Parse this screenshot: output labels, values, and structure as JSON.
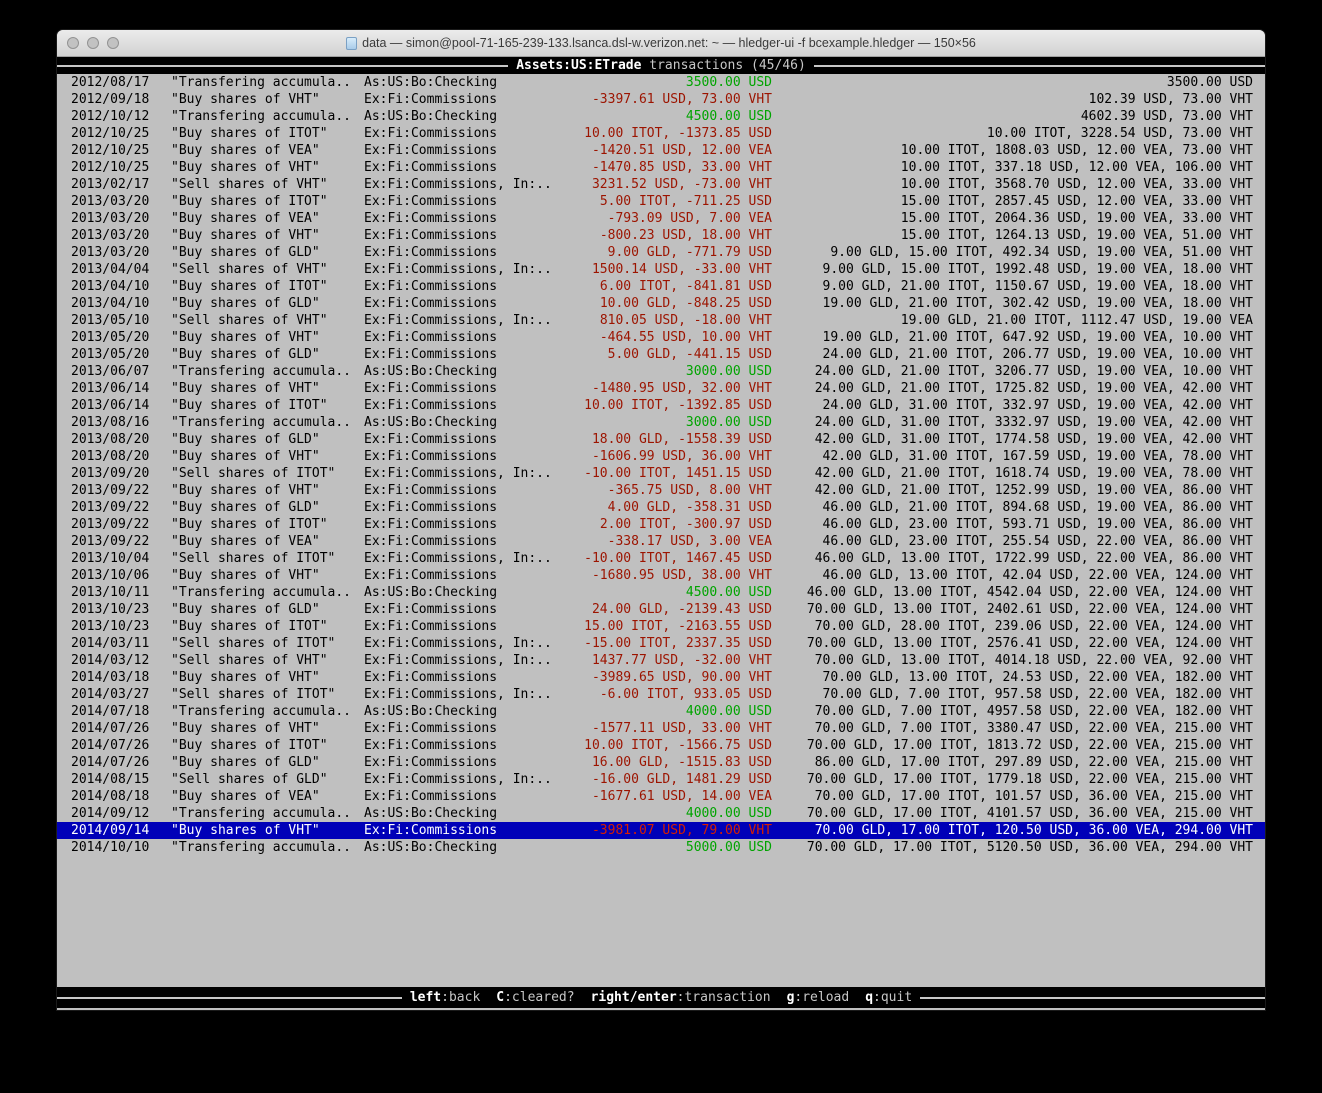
{
  "window": {
    "title": "data — simon@pool-71-165-239-133.lsanca.dsl-w.verizon.net: ~ — hledger-ui -f bcexample.hledger — 150×56"
  },
  "header": {
    "account": "Assets:US:ETrade",
    "label": "transactions (45/46)"
  },
  "footer": {
    "hints": [
      {
        "key": "left",
        "label": ":back"
      },
      {
        "key": "C",
        "label": ":cleared?"
      },
      {
        "key": "right/enter",
        "label": ":transaction"
      },
      {
        "key": "g",
        "label": ":reload"
      },
      {
        "key": "q",
        "label": ":quit"
      }
    ]
  },
  "colors": {
    "terminal_bg": "#c0c0c0",
    "band_bg": "#000000",
    "amount_green": "#00a400",
    "amount_red": "#9c1400",
    "selection_bg": "#0000b8",
    "selection_red": "#d61e00"
  },
  "selected_index": 44,
  "transactions": [
    {
      "date": "2012/08/17",
      "description": "\"Transfering accumula..",
      "account": "As:US:Bo:Checking",
      "amount": "3500.00 USD",
      "amount_color": "green",
      "balance": "3500.00 USD"
    },
    {
      "date": "2012/09/18",
      "description": "\"Buy shares of VHT\"",
      "account": "Ex:Fi:Commissions",
      "amount": "-3397.61 USD, 73.00 VHT",
      "amount_color": "red",
      "balance": "102.39 USD, 73.00 VHT"
    },
    {
      "date": "2012/10/12",
      "description": "\"Transfering accumula..",
      "account": "As:US:Bo:Checking",
      "amount": "4500.00 USD",
      "amount_color": "green",
      "balance": "4602.39 USD, 73.00 VHT"
    },
    {
      "date": "2012/10/25",
      "description": "\"Buy shares of ITOT\"",
      "account": "Ex:Fi:Commissions",
      "amount": "10.00 ITOT, -1373.85 USD",
      "amount_color": "red",
      "balance": "10.00 ITOT, 3228.54 USD, 73.00 VHT"
    },
    {
      "date": "2012/10/25",
      "description": "\"Buy shares of VEA\"",
      "account": "Ex:Fi:Commissions",
      "amount": "-1420.51 USD, 12.00 VEA",
      "amount_color": "red",
      "balance": "10.00 ITOT, 1808.03 USD, 12.00 VEA, 73.00 VHT"
    },
    {
      "date": "2012/10/25",
      "description": "\"Buy shares of VHT\"",
      "account": "Ex:Fi:Commissions",
      "amount": "-1470.85 USD, 33.00 VHT",
      "amount_color": "red",
      "balance": "10.00 ITOT, 337.18 USD, 12.00 VEA, 106.00 VHT"
    },
    {
      "date": "2013/02/17",
      "description": "\"Sell shares of VHT\"",
      "account": "Ex:Fi:Commissions, In:..",
      "amount": "3231.52 USD, -73.00 VHT",
      "amount_color": "red",
      "balance": "10.00 ITOT, 3568.70 USD, 12.00 VEA, 33.00 VHT"
    },
    {
      "date": "2013/03/20",
      "description": "\"Buy shares of ITOT\"",
      "account": "Ex:Fi:Commissions",
      "amount": "5.00 ITOT, -711.25 USD",
      "amount_color": "red",
      "balance": "15.00 ITOT, 2857.45 USD, 12.00 VEA, 33.00 VHT"
    },
    {
      "date": "2013/03/20",
      "description": "\"Buy shares of VEA\"",
      "account": "Ex:Fi:Commissions",
      "amount": "-793.09 USD, 7.00 VEA",
      "amount_color": "red",
      "balance": "15.00 ITOT, 2064.36 USD, 19.00 VEA, 33.00 VHT"
    },
    {
      "date": "2013/03/20",
      "description": "\"Buy shares of VHT\"",
      "account": "Ex:Fi:Commissions",
      "amount": "-800.23 USD, 18.00 VHT",
      "amount_color": "red",
      "balance": "15.00 ITOT, 1264.13 USD, 19.00 VEA, 51.00 VHT"
    },
    {
      "date": "2013/03/20",
      "description": "\"Buy shares of GLD\"",
      "account": "Ex:Fi:Commissions",
      "amount": "9.00 GLD, -771.79 USD",
      "amount_color": "red",
      "balance": "9.00 GLD, 15.00 ITOT, 492.34 USD, 19.00 VEA, 51.00 VHT"
    },
    {
      "date": "2013/04/04",
      "description": "\"Sell shares of VHT\"",
      "account": "Ex:Fi:Commissions, In:..",
      "amount": "1500.14 USD, -33.00 VHT",
      "amount_color": "red",
      "balance": "9.00 GLD, 15.00 ITOT, 1992.48 USD, 19.00 VEA, 18.00 VHT"
    },
    {
      "date": "2013/04/10",
      "description": "\"Buy shares of ITOT\"",
      "account": "Ex:Fi:Commissions",
      "amount": "6.00 ITOT, -841.81 USD",
      "amount_color": "red",
      "balance": "9.00 GLD, 21.00 ITOT, 1150.67 USD, 19.00 VEA, 18.00 VHT"
    },
    {
      "date": "2013/04/10",
      "description": "\"Buy shares of GLD\"",
      "account": "Ex:Fi:Commissions",
      "amount": "10.00 GLD, -848.25 USD",
      "amount_color": "red",
      "balance": "19.00 GLD, 21.00 ITOT, 302.42 USD, 19.00 VEA, 18.00 VHT"
    },
    {
      "date": "2013/05/10",
      "description": "\"Sell shares of VHT\"",
      "account": "Ex:Fi:Commissions, In:..",
      "amount": "810.05 USD, -18.00 VHT",
      "amount_color": "red",
      "balance": "19.00 GLD, 21.00 ITOT, 1112.47 USD, 19.00 VEA"
    },
    {
      "date": "2013/05/20",
      "description": "\"Buy shares of VHT\"",
      "account": "Ex:Fi:Commissions",
      "amount": "-464.55 USD, 10.00 VHT",
      "amount_color": "red",
      "balance": "19.00 GLD, 21.00 ITOT, 647.92 USD, 19.00 VEA, 10.00 VHT"
    },
    {
      "date": "2013/05/20",
      "description": "\"Buy shares of GLD\"",
      "account": "Ex:Fi:Commissions",
      "amount": "5.00 GLD, -441.15 USD",
      "amount_color": "red",
      "balance": "24.00 GLD, 21.00 ITOT, 206.77 USD, 19.00 VEA, 10.00 VHT"
    },
    {
      "date": "2013/06/07",
      "description": "\"Transfering accumula..",
      "account": "As:US:Bo:Checking",
      "amount": "3000.00 USD",
      "amount_color": "green",
      "balance": "24.00 GLD, 21.00 ITOT, 3206.77 USD, 19.00 VEA, 10.00 VHT"
    },
    {
      "date": "2013/06/14",
      "description": "\"Buy shares of VHT\"",
      "account": "Ex:Fi:Commissions",
      "amount": "-1480.95 USD, 32.00 VHT",
      "amount_color": "red",
      "balance": "24.00 GLD, 21.00 ITOT, 1725.82 USD, 19.00 VEA, 42.00 VHT"
    },
    {
      "date": "2013/06/14",
      "description": "\"Buy shares of ITOT\"",
      "account": "Ex:Fi:Commissions",
      "amount": "10.00 ITOT, -1392.85 USD",
      "amount_color": "red",
      "balance": "24.00 GLD, 31.00 ITOT, 332.97 USD, 19.00 VEA, 42.00 VHT"
    },
    {
      "date": "2013/08/16",
      "description": "\"Transfering accumula..",
      "account": "As:US:Bo:Checking",
      "amount": "3000.00 USD",
      "amount_color": "green",
      "balance": "24.00 GLD, 31.00 ITOT, 3332.97 USD, 19.00 VEA, 42.00 VHT"
    },
    {
      "date": "2013/08/20",
      "description": "\"Buy shares of GLD\"",
      "account": "Ex:Fi:Commissions",
      "amount": "18.00 GLD, -1558.39 USD",
      "amount_color": "red",
      "balance": "42.00 GLD, 31.00 ITOT, 1774.58 USD, 19.00 VEA, 42.00 VHT"
    },
    {
      "date": "2013/08/20",
      "description": "\"Buy shares of VHT\"",
      "account": "Ex:Fi:Commissions",
      "amount": "-1606.99 USD, 36.00 VHT",
      "amount_color": "red",
      "balance": "42.00 GLD, 31.00 ITOT, 167.59 USD, 19.00 VEA, 78.00 VHT"
    },
    {
      "date": "2013/09/20",
      "description": "\"Sell shares of ITOT\"",
      "account": "Ex:Fi:Commissions, In:..",
      "amount": "-10.00 ITOT, 1451.15 USD",
      "amount_color": "red",
      "balance": "42.00 GLD, 21.00 ITOT, 1618.74 USD, 19.00 VEA, 78.00 VHT"
    },
    {
      "date": "2013/09/22",
      "description": "\"Buy shares of VHT\"",
      "account": "Ex:Fi:Commissions",
      "amount": "-365.75 USD, 8.00 VHT",
      "amount_color": "red",
      "balance": "42.00 GLD, 21.00 ITOT, 1252.99 USD, 19.00 VEA, 86.00 VHT"
    },
    {
      "date": "2013/09/22",
      "description": "\"Buy shares of GLD\"",
      "account": "Ex:Fi:Commissions",
      "amount": "4.00 GLD, -358.31 USD",
      "amount_color": "red",
      "balance": "46.00 GLD, 21.00 ITOT, 894.68 USD, 19.00 VEA, 86.00 VHT"
    },
    {
      "date": "2013/09/22",
      "description": "\"Buy shares of ITOT\"",
      "account": "Ex:Fi:Commissions",
      "amount": "2.00 ITOT, -300.97 USD",
      "amount_color": "red",
      "balance": "46.00 GLD, 23.00 ITOT, 593.71 USD, 19.00 VEA, 86.00 VHT"
    },
    {
      "date": "2013/09/22",
      "description": "\"Buy shares of VEA\"",
      "account": "Ex:Fi:Commissions",
      "amount": "-338.17 USD, 3.00 VEA",
      "amount_color": "red",
      "balance": "46.00 GLD, 23.00 ITOT, 255.54 USD, 22.00 VEA, 86.00 VHT"
    },
    {
      "date": "2013/10/04",
      "description": "\"Sell shares of ITOT\"",
      "account": "Ex:Fi:Commissions, In:..",
      "amount": "-10.00 ITOT, 1467.45 USD",
      "amount_color": "red",
      "balance": "46.00 GLD, 13.00 ITOT, 1722.99 USD, 22.00 VEA, 86.00 VHT"
    },
    {
      "date": "2013/10/06",
      "description": "\"Buy shares of VHT\"",
      "account": "Ex:Fi:Commissions",
      "amount": "-1680.95 USD, 38.00 VHT",
      "amount_color": "red",
      "balance": "46.00 GLD, 13.00 ITOT, 42.04 USD, 22.00 VEA, 124.00 VHT"
    },
    {
      "date": "2013/10/11",
      "description": "\"Transfering accumula..",
      "account": "As:US:Bo:Checking",
      "amount": "4500.00 USD",
      "amount_color": "green",
      "balance": "46.00 GLD, 13.00 ITOT, 4542.04 USD, 22.00 VEA, 124.00 VHT"
    },
    {
      "date": "2013/10/23",
      "description": "\"Buy shares of GLD\"",
      "account": "Ex:Fi:Commissions",
      "amount": "24.00 GLD, -2139.43 USD",
      "amount_color": "red",
      "balance": "70.00 GLD, 13.00 ITOT, 2402.61 USD, 22.00 VEA, 124.00 VHT"
    },
    {
      "date": "2013/10/23",
      "description": "\"Buy shares of ITOT\"",
      "account": "Ex:Fi:Commissions",
      "amount": "15.00 ITOT, -2163.55 USD",
      "amount_color": "red",
      "balance": "70.00 GLD, 28.00 ITOT, 239.06 USD, 22.00 VEA, 124.00 VHT"
    },
    {
      "date": "2014/03/11",
      "description": "\"Sell shares of ITOT\"",
      "account": "Ex:Fi:Commissions, In:..",
      "amount": "-15.00 ITOT, 2337.35 USD",
      "amount_color": "red",
      "balance": "70.00 GLD, 13.00 ITOT, 2576.41 USD, 22.00 VEA, 124.00 VHT"
    },
    {
      "date": "2014/03/12",
      "description": "\"Sell shares of VHT\"",
      "account": "Ex:Fi:Commissions, In:..",
      "amount": "1437.77 USD, -32.00 VHT",
      "amount_color": "red",
      "balance": "70.00 GLD, 13.00 ITOT, 4014.18 USD, 22.00 VEA, 92.00 VHT"
    },
    {
      "date": "2014/03/18",
      "description": "\"Buy shares of VHT\"",
      "account": "Ex:Fi:Commissions",
      "amount": "-3989.65 USD, 90.00 VHT",
      "amount_color": "red",
      "balance": "70.00 GLD, 13.00 ITOT, 24.53 USD, 22.00 VEA, 182.00 VHT"
    },
    {
      "date": "2014/03/27",
      "description": "\"Sell shares of ITOT\"",
      "account": "Ex:Fi:Commissions, In:..",
      "amount": "-6.00 ITOT, 933.05 USD",
      "amount_color": "red",
      "balance": "70.00 GLD, 7.00 ITOT, 957.58 USD, 22.00 VEA, 182.00 VHT"
    },
    {
      "date": "2014/07/18",
      "description": "\"Transfering accumula..",
      "account": "As:US:Bo:Checking",
      "amount": "4000.00 USD",
      "amount_color": "green",
      "balance": "70.00 GLD, 7.00 ITOT, 4957.58 USD, 22.00 VEA, 182.00 VHT"
    },
    {
      "date": "2014/07/26",
      "description": "\"Buy shares of VHT\"",
      "account": "Ex:Fi:Commissions",
      "amount": "-1577.11 USD, 33.00 VHT",
      "amount_color": "red",
      "balance": "70.00 GLD, 7.00 ITOT, 3380.47 USD, 22.00 VEA, 215.00 VHT"
    },
    {
      "date": "2014/07/26",
      "description": "\"Buy shares of ITOT\"",
      "account": "Ex:Fi:Commissions",
      "amount": "10.00 ITOT, -1566.75 USD",
      "amount_color": "red",
      "balance": "70.00 GLD, 17.00 ITOT, 1813.72 USD, 22.00 VEA, 215.00 VHT"
    },
    {
      "date": "2014/07/26",
      "description": "\"Buy shares of GLD\"",
      "account": "Ex:Fi:Commissions",
      "amount": "16.00 GLD, -1515.83 USD",
      "amount_color": "red",
      "balance": "86.00 GLD, 17.00 ITOT, 297.89 USD, 22.00 VEA, 215.00 VHT"
    },
    {
      "date": "2014/08/15",
      "description": "\"Sell shares of GLD\"",
      "account": "Ex:Fi:Commissions, In:..",
      "amount": "-16.00 GLD, 1481.29 USD",
      "amount_color": "red",
      "balance": "70.00 GLD, 17.00 ITOT, 1779.18 USD, 22.00 VEA, 215.00 VHT"
    },
    {
      "date": "2014/08/18",
      "description": "\"Buy shares of VEA\"",
      "account": "Ex:Fi:Commissions",
      "amount": "-1677.61 USD, 14.00 VEA",
      "amount_color": "red",
      "balance": "70.00 GLD, 17.00 ITOT, 101.57 USD, 36.00 VEA, 215.00 VHT"
    },
    {
      "date": "2014/09/12",
      "description": "\"Transfering accumula..",
      "account": "As:US:Bo:Checking",
      "amount": "4000.00 USD",
      "amount_color": "green",
      "balance": "70.00 GLD, 17.00 ITOT, 4101.57 USD, 36.00 VEA, 215.00 VHT"
    },
    {
      "date": "2014/09/14",
      "description": "\"Buy shares of VHT\"",
      "account": "Ex:Fi:Commissions",
      "amount": "-3981.07 USD, 79.00 VHT",
      "amount_color": "red",
      "balance": "70.00 GLD, 17.00 ITOT, 120.50 USD, 36.00 VEA, 294.00 VHT"
    },
    {
      "date": "2014/10/10",
      "description": "\"Transfering accumula..",
      "account": "As:US:Bo:Checking",
      "amount": "5000.00 USD",
      "amount_color": "green",
      "balance": "70.00 GLD, 17.00 ITOT, 5120.50 USD, 36.00 VEA, 294.00 VHT"
    }
  ]
}
